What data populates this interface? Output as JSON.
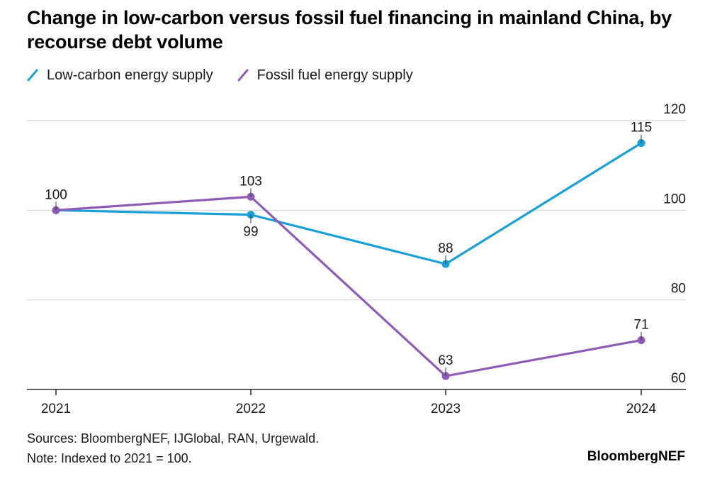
{
  "chart_data": {
    "type": "line",
    "title": "Change in low-carbon versus fossil fuel financing in mainland China, by recourse debt volume",
    "x": [
      "2021",
      "2022",
      "2023",
      "2024"
    ],
    "series": [
      {
        "name": "Low-carbon energy supply",
        "color": "#1a9fd6",
        "values": [
          100,
          99,
          88,
          115
        ],
        "labels": [
          "",
          "99",
          "88",
          "115"
        ]
      },
      {
        "name": "Fossil fuel energy supply",
        "color": "#8e5bb5",
        "values": [
          100,
          103,
          63,
          71
        ],
        "labels": [
          "100",
          "103",
          "63",
          "71"
        ]
      }
    ],
    "yticks": [
      60,
      80,
      100,
      120
    ],
    "ylim": [
      60,
      120
    ],
    "grid": true,
    "legend_position": "top-left"
  },
  "footer": {
    "sources": "Sources: BloombergNEF, IJGlobal, RAN, Urgewald.",
    "note": "Note: Indexed to 2021 = 100."
  },
  "brand": "BloombergNEF"
}
